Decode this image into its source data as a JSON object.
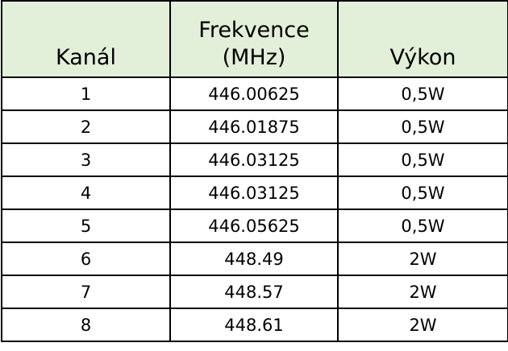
{
  "table": {
    "header": [
      "Kanál",
      "Frekvence (MHz)",
      "Výkon"
    ],
    "rows": [
      [
        "1",
        "446.00625",
        "0,5W"
      ],
      [
        "2",
        "446.01875",
        "0,5W"
      ],
      [
        "3",
        "446.03125",
        "0,5W"
      ],
      [
        "4",
        "446.03125",
        "0,5W"
      ],
      [
        "5",
        "446.05625",
        "0,5W"
      ],
      [
        "6",
        "448.49",
        "2W"
      ],
      [
        "7",
        "448.57",
        "2W"
      ],
      [
        "8",
        "448.61",
        "2W"
      ]
    ]
  }
}
